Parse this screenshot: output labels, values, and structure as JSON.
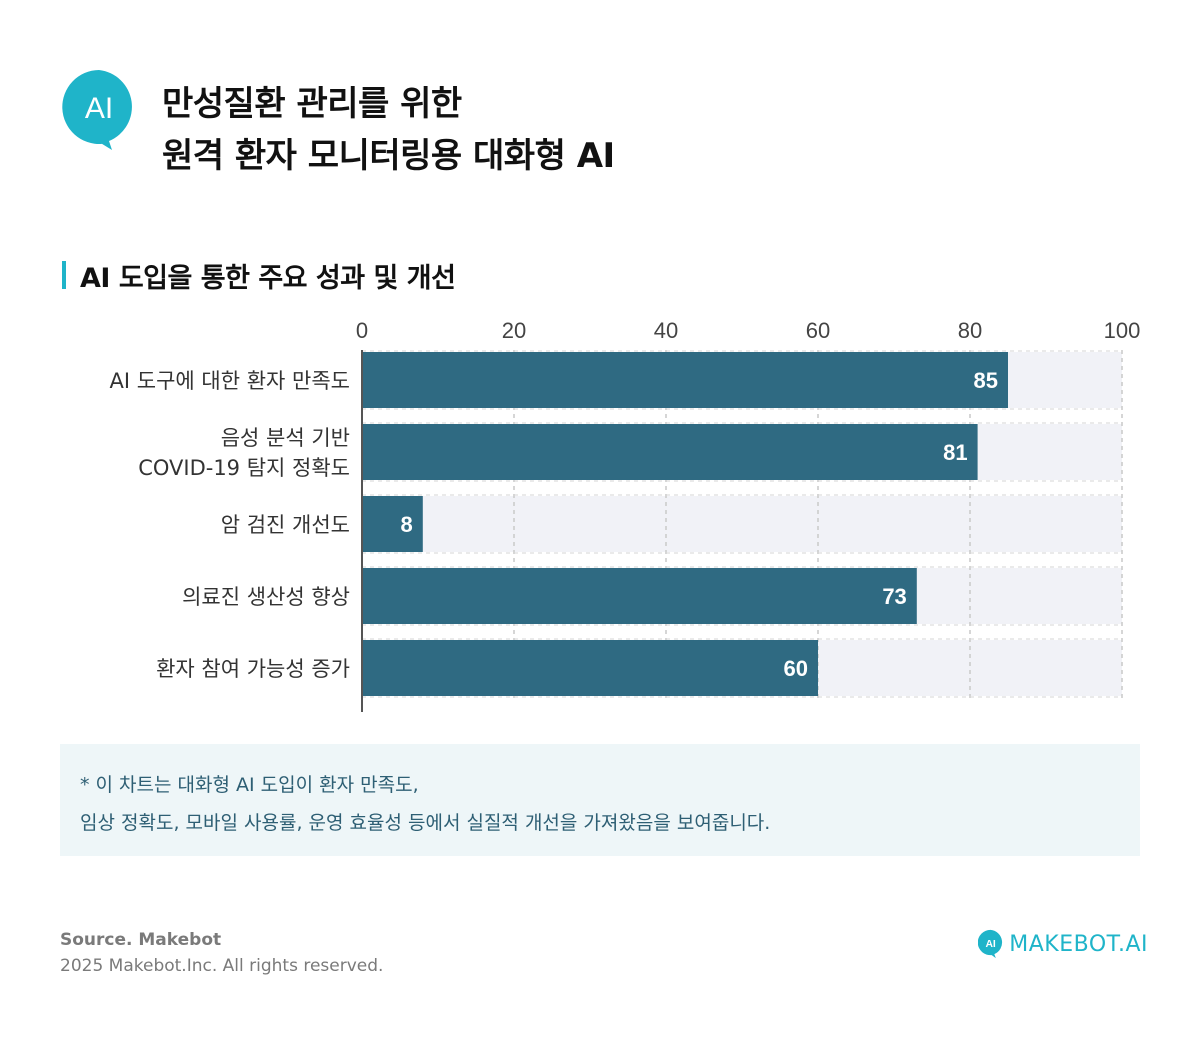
{
  "header": {
    "logo_text": "AI",
    "title_line1": "만성질환 관리를 위한",
    "title_line2": "원격 환자 모니터링용 대화형 AI"
  },
  "section": {
    "title": "AI 도입을 통한 주요 성과 및 개선"
  },
  "chart_data": {
    "type": "bar",
    "orientation": "horizontal",
    "categories": [
      [
        "AI 도구에 대한 환자 만족도"
      ],
      [
        "음성 분석 기반",
        "COVID-19 탐지 정확도"
      ],
      [
        "암 검진 개선도"
      ],
      [
        "의료진 생산성 향상"
      ],
      [
        "환자 참여 가능성 증가"
      ]
    ],
    "values": [
      85,
      81,
      8,
      73,
      60
    ],
    "xlim": [
      0,
      100
    ],
    "xticks": [
      "0",
      "20",
      "40",
      "60",
      "80",
      "100"
    ],
    "grid": true,
    "axis_position": "top",
    "bar_color": "#2f6a82",
    "track_color": "#f1f2f7",
    "label_color": "#ffffff"
  },
  "note": {
    "line1": "* 이 차트는 대화형 AI 도입이 환자 만족도,",
    "line2": "임상 정확도, 모바일 사용률, 운영 효율성 등에서 실질적 개선을 가져왔음을 보여줍니다."
  },
  "footer": {
    "source": "Source. Makebot",
    "copyright": "2025 Makebot.Inc. All rights reserved.",
    "brand_icon_text": "AI",
    "brand_name": "MAKEBOT.AI"
  },
  "colors": {
    "accent": "#1fb4c9",
    "bar": "#2f6a82"
  }
}
